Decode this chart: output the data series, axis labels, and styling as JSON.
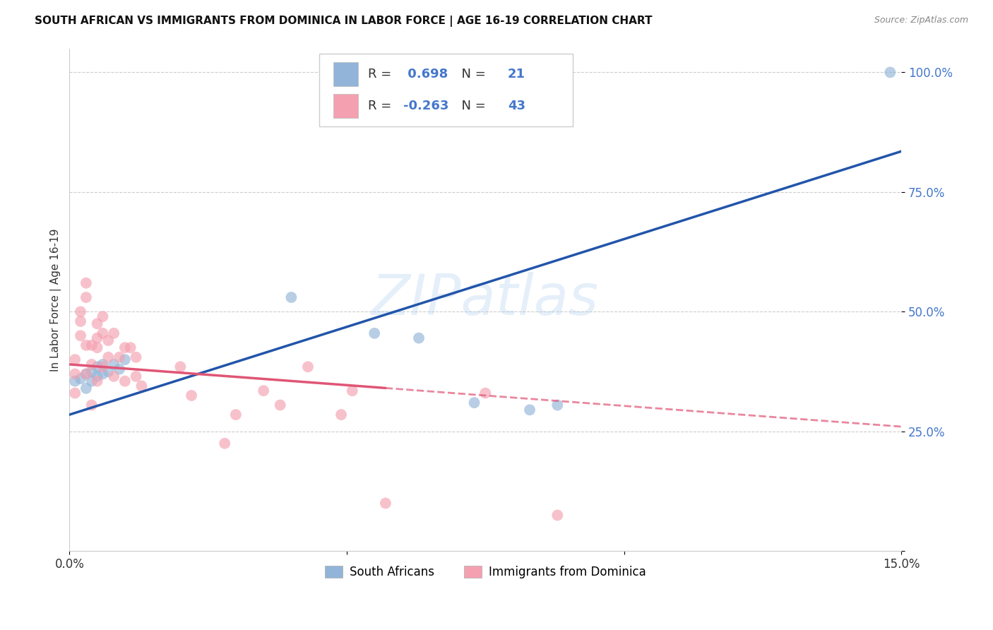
{
  "title": "SOUTH AFRICAN VS IMMIGRANTS FROM DOMINICA IN LABOR FORCE | AGE 16-19 CORRELATION CHART",
  "source": "Source: ZipAtlas.com",
  "ylabel": "In Labor Force | Age 16-19",
  "xlim": [
    0.0,
    0.15
  ],
  "ylim": [
    0.0,
    1.05
  ],
  "ytick_vals": [
    0.0,
    0.25,
    0.5,
    0.75,
    1.0
  ],
  "ytick_labels": [
    "",
    "25.0%",
    "50.0%",
    "75.0%",
    "100.0%"
  ],
  "xtick_vals": [
    0.0,
    0.05,
    0.1,
    0.15
  ],
  "xtick_labels": [
    "0.0%",
    "",
    "",
    "15.0%"
  ],
  "blue_R": 0.698,
  "blue_N": 21,
  "pink_R": -0.263,
  "pink_N": 43,
  "blue_color": "#92B4D8",
  "pink_color": "#F4A0B0",
  "blue_line_color": "#2255AA",
  "pink_line_color": "#E05575",
  "accent_color": "#4477CC",
  "legend_labels": [
    "South Africans",
    "Immigrants from Dominica"
  ],
  "blue_scatter_x": [
    0.001,
    0.002,
    0.003,
    0.003,
    0.004,
    0.004,
    0.005,
    0.005,
    0.006,
    0.006,
    0.007,
    0.008,
    0.009,
    0.01,
    0.04,
    0.055,
    0.063,
    0.073,
    0.083,
    0.088,
    0.148
  ],
  "blue_scatter_y": [
    0.355,
    0.36,
    0.34,
    0.37,
    0.355,
    0.375,
    0.365,
    0.385,
    0.37,
    0.39,
    0.375,
    0.39,
    0.38,
    0.4,
    0.53,
    0.455,
    0.445,
    0.31,
    0.295,
    0.305,
    1.0
  ],
  "pink_scatter_x": [
    0.001,
    0.001,
    0.001,
    0.002,
    0.002,
    0.002,
    0.003,
    0.003,
    0.003,
    0.003,
    0.004,
    0.004,
    0.004,
    0.005,
    0.005,
    0.005,
    0.005,
    0.006,
    0.006,
    0.006,
    0.007,
    0.007,
    0.008,
    0.008,
    0.009,
    0.01,
    0.01,
    0.011,
    0.012,
    0.012,
    0.013,
    0.02,
    0.022,
    0.028,
    0.03,
    0.035,
    0.038,
    0.043,
    0.049,
    0.051,
    0.057,
    0.075,
    0.088
  ],
  "pink_scatter_y": [
    0.4,
    0.37,
    0.33,
    0.5,
    0.48,
    0.45,
    0.56,
    0.53,
    0.43,
    0.37,
    0.43,
    0.39,
    0.305,
    0.475,
    0.445,
    0.425,
    0.355,
    0.49,
    0.455,
    0.385,
    0.44,
    0.405,
    0.455,
    0.365,
    0.405,
    0.425,
    0.355,
    0.425,
    0.405,
    0.365,
    0.345,
    0.385,
    0.325,
    0.225,
    0.285,
    0.335,
    0.305,
    0.385,
    0.285,
    0.335,
    0.1,
    0.33,
    0.075
  ],
  "blue_line_y_at_0": 0.285,
  "blue_line_y_at_015": 0.835,
  "pink_line_y_at_0": 0.39,
  "pink_line_y_at_015": 0.26,
  "pink_line_solid_end_x": 0.057,
  "watermark_text": "ZIPatlas"
}
